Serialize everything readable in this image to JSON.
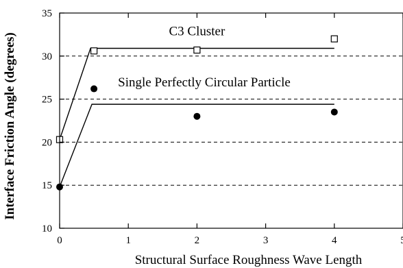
{
  "chart_data": {
    "type": "scatter",
    "xlabel": "Structural Surface Roughness Wave Length",
    "ylabel": "Interface Friction Angle (degrees)",
    "xlim": [
      0,
      5
    ],
    "ylim": [
      10,
      35
    ],
    "xticks": [
      "0",
      "1",
      "2",
      "3",
      "4",
      "5"
    ],
    "yticks": [
      "10",
      "15",
      "20",
      "25",
      "30",
      "35"
    ],
    "grid": "horizontal dashed",
    "series": [
      {
        "name": "C3 Cluster",
        "marker": "open-square",
        "points": [
          {
            "x": 0,
            "y": 20.3
          },
          {
            "x": 0.5,
            "y": 30.6
          },
          {
            "x": 2,
            "y": 30.7
          },
          {
            "x": 4,
            "y": 32.0
          }
        ],
        "fit": [
          {
            "x": 0,
            "y": 20.3
          },
          {
            "x": 0.45,
            "y": 30.9
          },
          {
            "x": 4,
            "y": 30.9
          }
        ]
      },
      {
        "name": "Single Perfectly Circular Particle",
        "marker": "filled-circle",
        "points": [
          {
            "x": 0,
            "y": 14.8
          },
          {
            "x": 0.5,
            "y": 26.2
          },
          {
            "x": 2,
            "y": 23.0
          },
          {
            "x": 4,
            "y": 23.5
          }
        ],
        "fit": [
          {
            "x": 0,
            "y": 14.8
          },
          {
            "x": 0.47,
            "y": 24.4
          },
          {
            "x": 4,
            "y": 24.4
          }
        ]
      }
    ],
    "annotations": [
      {
        "text": "C3 Cluster",
        "x": 2.0,
        "y": 32.4,
        "anchor": "middle"
      },
      {
        "text": "Single Perfectly Circular Particle",
        "x": 0.85,
        "y": 26.5,
        "anchor": "start"
      }
    ],
    "colors": {
      "ink": "#000000",
      "background": "#ffffff"
    }
  }
}
